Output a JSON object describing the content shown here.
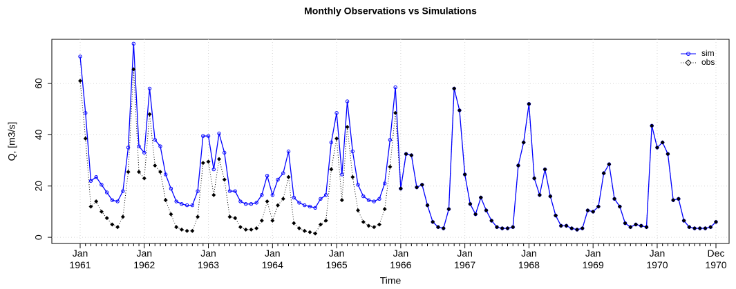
{
  "chart_data": {
    "type": "line",
    "title": "Monthly Observations vs Simulations",
    "x_label": "Time",
    "y_label": "Q, [m3/s]",
    "categories": [
      "Jan\n1961",
      null,
      null,
      null,
      null,
      null,
      null,
      null,
      null,
      null,
      null,
      null,
      "Jan\n1962",
      null,
      null,
      null,
      null,
      null,
      null,
      null,
      null,
      null,
      null,
      null,
      "Jan\n1963",
      null,
      null,
      null,
      null,
      null,
      null,
      null,
      null,
      null,
      null,
      null,
      "Jan\n1964",
      null,
      null,
      null,
      null,
      null,
      null,
      null,
      null,
      null,
      null,
      null,
      "Jan\n1965",
      null,
      null,
      null,
      null,
      null,
      null,
      null,
      null,
      null,
      null,
      null,
      "Jan\n1966",
      null,
      null,
      null,
      null,
      null,
      null,
      null,
      null,
      null,
      null,
      null,
      "Jan\n1967",
      null,
      null,
      null,
      null,
      null,
      null,
      null,
      null,
      null,
      null,
      null,
      "Jan\n1968",
      null,
      null,
      null,
      null,
      null,
      null,
      null,
      null,
      null,
      null,
      null,
      "Jan\n1969",
      null,
      null,
      null,
      null,
      null,
      null,
      null,
      null,
      null,
      null,
      null,
      "Jan\n1970",
      null,
      null,
      null,
      null,
      null,
      null,
      null,
      null,
      null,
      null,
      "Dec\n1970"
    ],
    "series": [
      {
        "name": "sim",
        "color": "#0000ff",
        "values": [
          70.5,
          48.5,
          22,
          23.5,
          20.5,
          17.5,
          14.5,
          14,
          18,
          35,
          75.5,
          35.5,
          33,
          58,
          38,
          35.5,
          24.5,
          19,
          14,
          13,
          12.5,
          12.5,
          18,
          39.5,
          39.5,
          26.5,
          40.5,
          33,
          18,
          18,
          14,
          13,
          13,
          13.5,
          16.5,
          24,
          16.5,
          22.5,
          25,
          33.5,
          15.5,
          13.5,
          12.5,
          12,
          11.5,
          15,
          16.5,
          37,
          48.5,
          24.5,
          53,
          33.5,
          20.5,
          16,
          14.5,
          14,
          15,
          21,
          38,
          58.5,
          19,
          32.5,
          32,
          19.5,
          20.5,
          12.5,
          6,
          4,
          3.5,
          11,
          58,
          49.5,
          24.5,
          13,
          9,
          15.5,
          10.5,
          6.5,
          4,
          3.5,
          3.5,
          4,
          28,
          37,
          52,
          23,
          16.5,
          26.5,
          16,
          8.5,
          4.5,
          4.5,
          3.5,
          3,
          3.5,
          10.5,
          10,
          12,
          25,
          28.5,
          15,
          12,
          5.5,
          4,
          5,
          4.5,
          4,
          43.5,
          35,
          37,
          32.5,
          14.5,
          15,
          6.5,
          4,
          3.5,
          3.5,
          3.5,
          4,
          6
        ]
      },
      {
        "name": "obs",
        "color": "#000000",
        "values": [
          61,
          38.5,
          12,
          14,
          10,
          7.5,
          5,
          4,
          8,
          25.5,
          65.5,
          25.5,
          23,
          48,
          28,
          25.5,
          14.5,
          9,
          4,
          3,
          2.5,
          2.5,
          8,
          29,
          29.5,
          16.5,
          30.5,
          22.5,
          8,
          7.5,
          4,
          3,
          3,
          3.5,
          6.5,
          14,
          6.5,
          12.5,
          15,
          23.5,
          5.5,
          3.5,
          2.5,
          2,
          1.5,
          5,
          6.5,
          26.5,
          38.5,
          14.5,
          43,
          23.5,
          10.5,
          6,
          4.5,
          4,
          5,
          11,
          27.5,
          48.5,
          19,
          32.5,
          32,
          19.5,
          20.5,
          12.5,
          6,
          4,
          3.5,
          11,
          58,
          49.5,
          24.5,
          13,
          9,
          15.5,
          10.5,
          6.5,
          4,
          3.5,
          3.5,
          4,
          28,
          37,
          52,
          23,
          16.5,
          26.5,
          16,
          8.5,
          4.5,
          4.5,
          3.5,
          3,
          3.5,
          10.5,
          10,
          12,
          25,
          28.5,
          15,
          12,
          5.5,
          4,
          5,
          4.5,
          4,
          43.5,
          35,
          37,
          32.5,
          14.5,
          15,
          6.5,
          4,
          3.5,
          3.5,
          3.5,
          4,
          6
        ]
      }
    ],
    "ylim": [
      -2.4,
      77.2
    ],
    "yticks": [
      0,
      20,
      40,
      60
    ],
    "grid": true,
    "legend": "top-right"
  }
}
